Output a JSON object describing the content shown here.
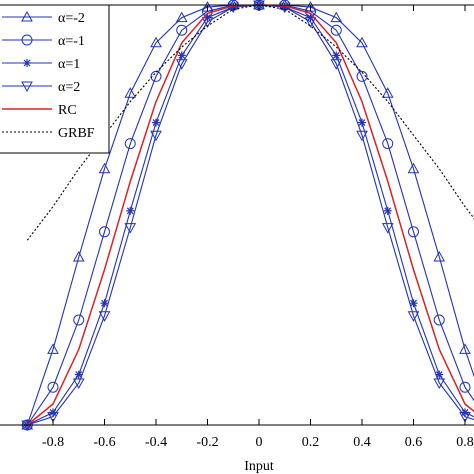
{
  "chart_data": {
    "type": "line",
    "title": "",
    "xlabel": "Input",
    "ylabel": "",
    "xlim": [
      -0.9,
      0.9
    ],
    "ylim": [
      0,
      1
    ],
    "grid": false,
    "x_ticks": [
      -0.8,
      -0.6,
      -0.4,
      -0.2,
      0,
      0.2,
      0.4,
      0.6,
      0.8
    ],
    "x_tick_labels": [
      "-0.8",
      "-0.6",
      "-0.4",
      "-0.2",
      "0",
      "0.2",
      "0.4",
      "0.6",
      "0.8"
    ],
    "legend": {
      "placement": "top-left",
      "entries": [
        "α=-2",
        "α=-1",
        "α=1",
        "α=2",
        "RC",
        "GRBF"
      ]
    },
    "series": [
      {
        "name": "α=-2",
        "color": "#2233bb",
        "marker": "triangle-up",
        "x": [
          -0.9,
          -0.8,
          -0.7,
          -0.6,
          -0.5,
          -0.4,
          -0.3,
          -0.2,
          -0.1,
          0,
          0.1,
          0.2,
          0.3,
          0.4,
          0.5,
          0.6,
          0.7,
          0.8,
          0.9
        ],
        "y": [
          0.0,
          0.18,
          0.4,
          0.61,
          0.79,
          0.91,
          0.97,
          0.995,
          1.0,
          1.0,
          1.0,
          0.995,
          0.97,
          0.91,
          0.79,
          0.61,
          0.4,
          0.18,
          0.0
        ]
      },
      {
        "name": "α=-1",
        "color": "#2233bb",
        "marker": "circle",
        "x": [
          -0.9,
          -0.8,
          -0.7,
          -0.6,
          -0.5,
          -0.4,
          -0.3,
          -0.2,
          -0.1,
          0,
          0.1,
          0.2,
          0.3,
          0.4,
          0.5,
          0.6,
          0.7,
          0.8,
          0.9
        ],
        "y": [
          0.0,
          0.09,
          0.25,
          0.46,
          0.67,
          0.83,
          0.94,
          0.985,
          1.0,
          1.0,
          1.0,
          0.985,
          0.94,
          0.83,
          0.67,
          0.46,
          0.25,
          0.09,
          0.0
        ]
      },
      {
        "name": "α=1",
        "color": "#2233bb",
        "marker": "star",
        "x": [
          -0.9,
          -0.8,
          -0.7,
          -0.6,
          -0.5,
          -0.4,
          -0.3,
          -0.2,
          -0.1,
          0,
          0.1,
          0.2,
          0.3,
          0.4,
          0.5,
          0.6,
          0.7,
          0.8,
          0.9
        ],
        "y": [
          0.0,
          0.03,
          0.12,
          0.29,
          0.51,
          0.72,
          0.88,
          0.97,
          0.995,
          1.0,
          0.995,
          0.97,
          0.88,
          0.72,
          0.51,
          0.29,
          0.12,
          0.03,
          0.0
        ]
      },
      {
        "name": "α=2",
        "color": "#2233bb",
        "marker": "triangle-down",
        "x": [
          -0.9,
          -0.8,
          -0.7,
          -0.6,
          -0.5,
          -0.4,
          -0.3,
          -0.2,
          -0.1,
          0,
          0.1,
          0.2,
          0.3,
          0.4,
          0.5,
          0.6,
          0.7,
          0.8,
          0.9
        ],
        "y": [
          0.0,
          0.02,
          0.1,
          0.26,
          0.47,
          0.69,
          0.86,
          0.96,
          0.995,
          1.0,
          0.995,
          0.96,
          0.86,
          0.69,
          0.47,
          0.26,
          0.1,
          0.02,
          0.0
        ]
      },
      {
        "name": "RC",
        "color": "#dd2222",
        "marker": "none",
        "x": [
          -0.9,
          -0.8,
          -0.7,
          -0.6,
          -0.5,
          -0.4,
          -0.3,
          -0.2,
          -0.1,
          0,
          0.1,
          0.2,
          0.3,
          0.4,
          0.5,
          0.6,
          0.7,
          0.8,
          0.9
        ],
        "y": [
          0.0,
          0.05,
          0.18,
          0.37,
          0.58,
          0.77,
          0.91,
          0.98,
          0.998,
          1.0,
          0.998,
          0.98,
          0.91,
          0.77,
          0.58,
          0.37,
          0.18,
          0.05,
          0.0
        ]
      },
      {
        "name": "GRBF",
        "color": "#000000",
        "marker": "none",
        "dashed": true,
        "x": [
          -0.9,
          -0.8,
          -0.7,
          -0.6,
          -0.5,
          -0.4,
          -0.3,
          -0.2,
          -0.1,
          0,
          0.1,
          0.2,
          0.3,
          0.4,
          0.5,
          0.6,
          0.7,
          0.8,
          0.9
        ],
        "y": [
          0.44,
          0.52,
          0.61,
          0.69,
          0.77,
          0.84,
          0.9,
          0.95,
          0.99,
          1.0,
          0.99,
          0.95,
          0.9,
          0.84,
          0.77,
          0.69,
          0.61,
          0.52,
          0.44
        ]
      }
    ]
  }
}
